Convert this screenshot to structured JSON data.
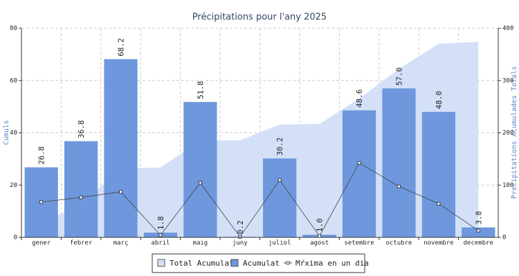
{
  "chart_data": {
    "type": "bar",
    "title": "Précipitations pour l'any 2025",
    "y_label": "Cumuls",
    "y2_label": "Precipitations Acumulades Totals",
    "categories": [
      "gener",
      "febrer",
      "març",
      "abril",
      "maig",
      "juny",
      "juliol",
      "agost",
      "setembre",
      "octubre",
      "novembre",
      "decembre"
    ],
    "series": [
      {
        "name": "Total Acumulat",
        "type": "area",
        "axis": "y2",
        "color": "#d3e0f7",
        "values": [
          26.8,
          63.6,
          131.8,
          133.6,
          185.4,
          185.6,
          215.8,
          216.8,
          265.4,
          322.4,
          370.4,
          374.2
        ]
      },
      {
        "name": "Acumulat",
        "type": "bar",
        "color": "#6e97dd",
        "values": [
          26.8,
          36.8,
          68.2,
          1.8,
          51.8,
          0.2,
          30.2,
          1.0,
          48.6,
          57.0,
          48.0,
          3.8
        ],
        "value_labels": [
          "26.8",
          "36.8",
          "68.2",
          "1.8",
          "51.8",
          "0.2",
          "30.2",
          "1.0",
          "48.6",
          "57.0",
          "48.0",
          "3.8"
        ]
      },
      {
        "name": "Mŕxima en un dia",
        "type": "line",
        "color": "#444444",
        "values": [
          13.5,
          15.3,
          17.4,
          0.8,
          20.9,
          0.2,
          21.9,
          0.5,
          28.5,
          19.5,
          12.9,
          2.6
        ]
      }
    ],
    "ylim": [
      0,
      80
    ],
    "yticks": [
      0,
      20,
      40,
      60,
      80
    ],
    "y2lim": [
      0,
      400
    ],
    "y2ticks": [
      0,
      100,
      200,
      300,
      400
    ],
    "grid": true,
    "legend": "bottom"
  }
}
